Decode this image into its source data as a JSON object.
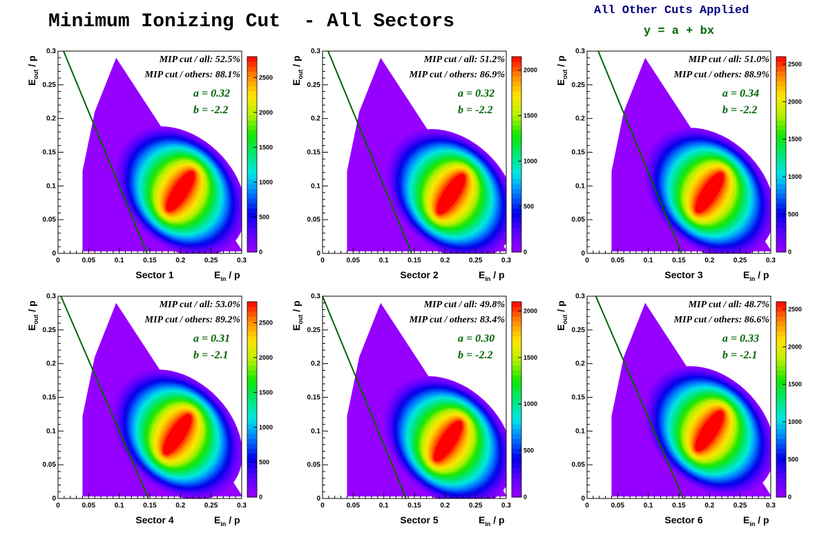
{
  "page": {
    "title": "Minimum Ionizing Cut  - All Sectors",
    "cuts_note": "All Other Cuts Applied",
    "fit_formula": "y = a + bx",
    "colors": {
      "fit_line": "#006400",
      "fit_text": "#006400",
      "note": "#000080"
    }
  },
  "chart_data": [
    {
      "type": "heatmap",
      "sector_label": "Sector 1",
      "xlabel": "E_in / p",
      "ylabel": "E_out / p",
      "xlim": [
        0,
        0.3
      ],
      "ylim": [
        0,
        0.3
      ],
      "xticks": [
        "0",
        "0.05",
        "0.1",
        "0.15",
        "0.2",
        "0.25",
        "0.3"
      ],
      "yticks": [
        "0",
        "0.05",
        "0.1",
        "0.15",
        "0.2",
        "0.25",
        "0.3"
      ],
      "zlim": [
        0,
        2800
      ],
      "zticks": [
        0,
        500,
        1000,
        1500,
        2000,
        2500
      ],
      "mip_all": "MIP cut / all: 52.5%",
      "mip_others": "MIP cut / others: 88.1%",
      "a_text": "a = 0.32",
      "b_text": "b = -2.2",
      "fit": {
        "a": 0.32,
        "b": -2.2
      },
      "peak": {
        "x": 0.2,
        "y": 0.092
      }
    },
    {
      "type": "heatmap",
      "sector_label": "Sector 2",
      "xlabel": "E_in / p",
      "ylabel": "E_out / p",
      "xlim": [
        0,
        0.3
      ],
      "ylim": [
        0,
        0.3
      ],
      "xticks": [
        "0",
        "0.05",
        "0.1",
        "0.15",
        "0.2",
        "0.25",
        "0.3"
      ],
      "yticks": [
        "0",
        "0.05",
        "0.1",
        "0.15",
        "0.2",
        "0.25",
        "0.3"
      ],
      "zlim": [
        0,
        2150
      ],
      "zticks": [
        0,
        500,
        1000,
        1500,
        2000
      ],
      "mip_all": "MIP cut / all: 51.2%",
      "mip_others": "MIP cut / others: 86.9%",
      "a_text": "a = 0.32",
      "b_text": "b = -2.2",
      "fit": {
        "a": 0.32,
        "b": -2.2
      },
      "peak": {
        "x": 0.21,
        "y": 0.088
      }
    },
    {
      "type": "heatmap",
      "sector_label": "Sector 3",
      "xlabel": "E_in / p",
      "ylabel": "E_out / p",
      "xlim": [
        0,
        0.3
      ],
      "ylim": [
        0,
        0.3
      ],
      "xticks": [
        "0",
        "0.05",
        "0.1",
        "0.15",
        "0.2",
        "0.25",
        "0.3"
      ],
      "yticks": [
        "0",
        "0.05",
        "0.1",
        "0.15",
        "0.2",
        "0.25",
        "0.3"
      ],
      "zlim": [
        0,
        2600
      ],
      "zticks": [
        0,
        500,
        1000,
        1500,
        2000,
        2500
      ],
      "mip_all": "MIP cut / all: 51.0%",
      "mip_others": "MIP cut / others: 88.9%",
      "a_text": "a = 0.34",
      "b_text": "b = -2.2",
      "fit": {
        "a": 0.34,
        "b": -2.2
      },
      "peak": {
        "x": 0.2,
        "y": 0.09
      }
    },
    {
      "type": "heatmap",
      "sector_label": "Sector 4",
      "xlabel": "E_in / p",
      "ylabel": "E_out / p",
      "xlim": [
        0,
        0.3
      ],
      "ylim": [
        0,
        0.3
      ],
      "xticks": [
        "0",
        "0.05",
        "0.1",
        "0.15",
        "0.2",
        "0.25",
        "0.3"
      ],
      "yticks": [
        "0",
        "0.05",
        "0.1",
        "0.15",
        "0.2",
        "0.25",
        "0.3"
      ],
      "zlim": [
        0,
        2800
      ],
      "zticks": [
        0,
        500,
        1000,
        1500,
        2000,
        2500
      ],
      "mip_all": "MIP cut / all: 53.0%",
      "mip_others": "MIP cut / others: 89.2%",
      "a_text": "a = 0.31",
      "b_text": "b = -2.1",
      "fit": {
        "a": 0.31,
        "b": -2.1
      },
      "peak": {
        "x": 0.195,
        "y": 0.095
      }
    },
    {
      "type": "heatmap",
      "sector_label": "Sector 5",
      "xlabel": "E_in / p",
      "ylabel": "E_out / p",
      "xlim": [
        0,
        0.3
      ],
      "ylim": [
        0,
        0.3
      ],
      "xticks": [
        "0",
        "0.05",
        "0.1",
        "0.15",
        "0.2",
        "0.25",
        "0.3"
      ],
      "yticks": [
        "0",
        "0.05",
        "0.1",
        "0.15",
        "0.2",
        "0.25",
        "0.3"
      ],
      "zlim": [
        0,
        2100
      ],
      "zticks": [
        0,
        500,
        1000,
        1500,
        2000
      ],
      "mip_all": "MIP cut / all: 49.8%",
      "mip_others": "MIP cut / others: 83.4%",
      "a_text": "a = 0.30",
      "b_text": "b = -2.2",
      "fit": {
        "a": 0.3,
        "b": -2.2
      },
      "peak": {
        "x": 0.205,
        "y": 0.085
      }
    },
    {
      "type": "heatmap",
      "sector_label": "Sector 6",
      "xlabel": "E_in / p",
      "ylabel": "E_out / p",
      "xlim": [
        0,
        0.3
      ],
      "ylim": [
        0,
        0.3
      ],
      "xticks": [
        "0",
        "0.05",
        "0.1",
        "0.15",
        "0.2",
        "0.25",
        "0.3"
      ],
      "yticks": [
        "0",
        "0.05",
        "0.1",
        "0.15",
        "0.2",
        "0.25",
        "0.3"
      ],
      "zlim": [
        0,
        2600
      ],
      "zticks": [
        0,
        500,
        1000,
        1500,
        2000,
        2500
      ],
      "mip_all": "MIP cut / all: 48.7%",
      "mip_others": "MIP cut / others: 86.6%",
      "a_text": "a = 0.33",
      "b_text": "b = -2.1",
      "fit": {
        "a": 0.33,
        "b": -2.1
      },
      "peak": {
        "x": 0.2,
        "y": 0.1
      }
    }
  ]
}
